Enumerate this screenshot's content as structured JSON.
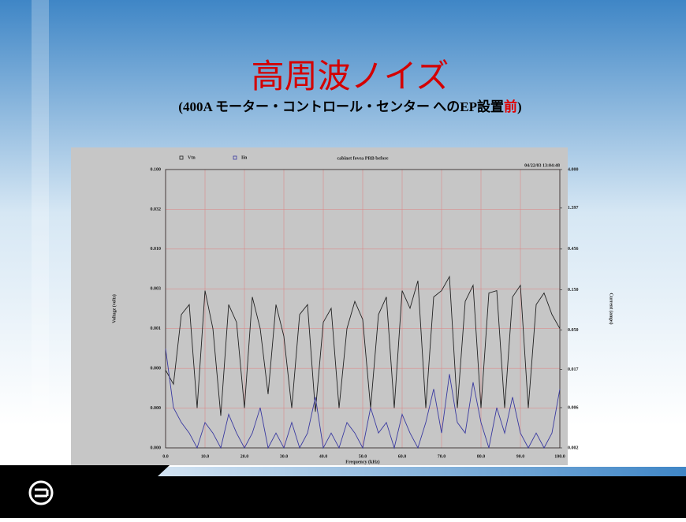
{
  "title": "高周波ノイズ",
  "subtitle": [
    "(400A モーター・コントロール・センター へのEP設置",
    "前",
    ")"
  ],
  "chart_data": {
    "type": "line",
    "title": "cabinet fovea PRB before",
    "timestamp": "04/22/03 13:04:48",
    "x_label": "Frequency (kHz)",
    "y_label": "Voltage (volts)",
    "y2_label": "Current (amps)",
    "yscale": "log",
    "grid": true,
    "x": [
      0,
      2,
      4,
      6,
      8,
      10,
      12,
      14,
      16,
      18,
      20,
      22,
      24,
      26,
      28,
      30,
      32,
      34,
      36,
      38,
      40,
      42,
      44,
      46,
      48,
      50,
      52,
      54,
      56,
      58,
      60,
      62,
      64,
      66,
      68,
      70,
      72,
      74,
      76,
      78,
      80,
      82,
      84,
      86,
      88,
      90,
      92,
      94,
      96,
      98,
      100
    ],
    "xlim": [
      0,
      100
    ],
    "xticks": [
      {
        "value": 0,
        "label": "0.0"
      },
      {
        "value": 10,
        "label": "10.0"
      },
      {
        "value": 20,
        "label": "20.0"
      },
      {
        "value": 30,
        "label": "30.0"
      },
      {
        "value": 40,
        "label": "40.0"
      },
      {
        "value": 50,
        "label": "50.0"
      },
      {
        "value": 60,
        "label": "60.0"
      },
      {
        "value": 70,
        "label": "70.0"
      },
      {
        "value": 80,
        "label": "80.0"
      },
      {
        "value": 90,
        "label": "90.0"
      },
      {
        "value": 100,
        "label": "100.0"
      }
    ],
    "ylim": [
      3.16e-05,
      0.1
    ],
    "yticks": [
      {
        "value": 3.16e-05,
        "label": "0.000"
      },
      {
        "value": 0.0001,
        "label": "0.000"
      },
      {
        "value": 0.000316,
        "label": "0.000"
      },
      {
        "value": 0.001,
        "label": "0.001"
      },
      {
        "value": 0.00316,
        "label": "0.003"
      },
      {
        "value": 0.01,
        "label": "0.010"
      },
      {
        "value": 0.0316,
        "label": "0.032"
      },
      {
        "value": 0.1,
        "label": "0.100"
      }
    ],
    "y2lim": [
      0.002,
      4
    ],
    "y2ticks": [
      0.002,
      0.006,
      0.017,
      {
        "value": 0.05,
        "label": "0.050"
      },
      {
        "value": 0.15,
        "label": "0.150"
      },
      0.456,
      1.397,
      {
        "value": 4,
        "label": "4.000"
      }
    ],
    "series": [
      {
        "name": "Vtn",
        "color": "#222222",
        "values": [
          0.0003,
          0.0002,
          0.0015,
          0.002,
          0.0001,
          0.003,
          0.001,
          8e-05,
          0.002,
          0.0012,
          0.0001,
          0.0025,
          0.001,
          0.00015,
          0.002,
          0.0008,
          0.0001,
          0.0015,
          0.002,
          9e-05,
          0.0012,
          0.0018,
          0.0001,
          0.001,
          0.0022,
          0.0013,
          0.0001,
          0.0015,
          0.0025,
          0.0001,
          0.003,
          0.0018,
          0.004,
          0.0001,
          0.0025,
          0.003,
          0.0045,
          0.0001,
          0.0022,
          0.0035,
          0.0001,
          0.0028,
          0.003,
          0.0001,
          0.0025,
          0.0035,
          0.0001,
          0.002,
          0.0028,
          0.0015,
          0.001
        ]
      },
      {
        "name": "Iin",
        "color": "#3a3aa0",
        "axis": "y2",
        "values": [
          0.03,
          0.006,
          0.004,
          0.003,
          0.002,
          0.004,
          0.003,
          0.002,
          0.005,
          0.003,
          0.002,
          0.003,
          0.006,
          0.002,
          0.003,
          0.002,
          0.004,
          0.002,
          0.003,
          0.008,
          0.002,
          0.003,
          0.002,
          0.004,
          0.003,
          0.002,
          0.006,
          0.003,
          0.004,
          0.002,
          0.005,
          0.003,
          0.002,
          0.004,
          0.01,
          0.003,
          0.015,
          0.004,
          0.003,
          0.012,
          0.004,
          0.002,
          0.006,
          0.003,
          0.008,
          0.003,
          0.002,
          0.003,
          0.002,
          0.003,
          0.01
        ]
      }
    ]
  }
}
